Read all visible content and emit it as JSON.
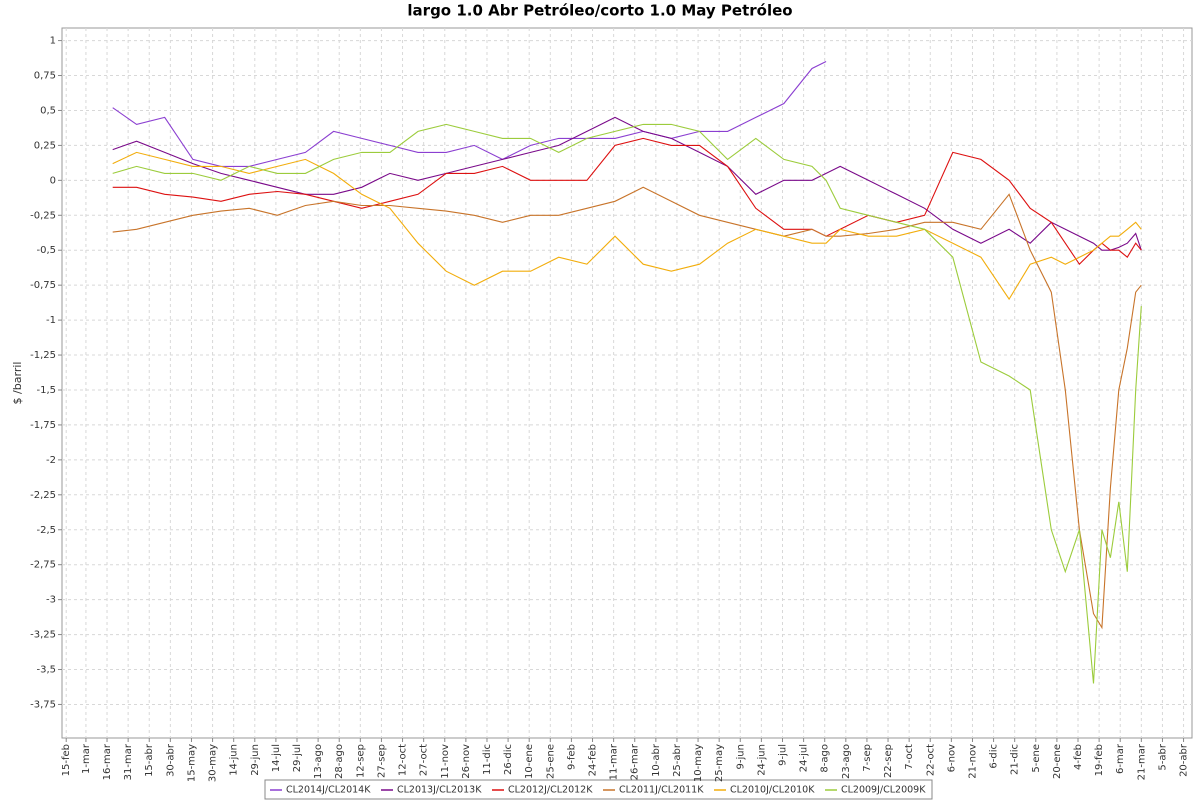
{
  "chart_data": {
    "type": "line",
    "title": "largo 1.0 Abr Petróleo/corto 1.0 May Petróleo",
    "y_label": "$ /barril",
    "grid": true,
    "legend": "bottom",
    "xlim": [
      -3,
      800
    ],
    "xticks": [
      {
        "value": 0,
        "label": "15-feb"
      },
      {
        "value": 14,
        "label": "1-mar"
      },
      {
        "value": 29,
        "label": "16-mar"
      },
      {
        "value": 44,
        "label": "31-mar"
      },
      {
        "value": 59,
        "label": "15-abr"
      },
      {
        "value": 74,
        "label": "30-abr"
      },
      {
        "value": 89,
        "label": "15-may"
      },
      {
        "value": 104,
        "label": "30-may"
      },
      {
        "value": 119,
        "label": "14-jun"
      },
      {
        "value": 134,
        "label": "29-jun"
      },
      {
        "value": 149,
        "label": "14-jul"
      },
      {
        "value": 164,
        "label": "29-jul"
      },
      {
        "value": 179,
        "label": "13-ago"
      },
      {
        "value": 194,
        "label": "28-ago"
      },
      {
        "value": 209,
        "label": "12-sep"
      },
      {
        "value": 224,
        "label": "27-sep"
      },
      {
        "value": 239,
        "label": "12-oct"
      },
      {
        "value": 254,
        "label": "27-oct"
      },
      {
        "value": 269,
        "label": "11-nov"
      },
      {
        "value": 284,
        "label": "26-nov"
      },
      {
        "value": 299,
        "label": "11-dic"
      },
      {
        "value": 314,
        "label": "26-dic"
      },
      {
        "value": 329,
        "label": "10-ene"
      },
      {
        "value": 344,
        "label": "25-ene"
      },
      {
        "value": 359,
        "label": "9-feb"
      },
      {
        "value": 374,
        "label": "24-feb"
      },
      {
        "value": 389,
        "label": "11-mar"
      },
      {
        "value": 404,
        "label": "26-mar"
      },
      {
        "value": 419,
        "label": "10-abr"
      },
      {
        "value": 434,
        "label": "25-abr"
      },
      {
        "value": 449,
        "label": "10-may"
      },
      {
        "value": 464,
        "label": "25-may"
      },
      {
        "value": 479,
        "label": "9-jun"
      },
      {
        "value": 494,
        "label": "24-jun"
      },
      {
        "value": 509,
        "label": "9-jul"
      },
      {
        "value": 524,
        "label": "24-jul"
      },
      {
        "value": 539,
        "label": "8-ago"
      },
      {
        "value": 554,
        "label": "23-ago"
      },
      {
        "value": 569,
        "label": "7-sep"
      },
      {
        "value": 584,
        "label": "22-sep"
      },
      {
        "value": 599,
        "label": "7-oct"
      },
      {
        "value": 614,
        "label": "22-oct"
      },
      {
        "value": 629,
        "label": "6-nov"
      },
      {
        "value": 644,
        "label": "21-nov"
      },
      {
        "value": 659,
        "label": "6-dic"
      },
      {
        "value": 674,
        "label": "21-dic"
      },
      {
        "value": 689,
        "label": "5-ene"
      },
      {
        "value": 704,
        "label": "20-ene"
      },
      {
        "value": 719,
        "label": "4-feb"
      },
      {
        "value": 734,
        "label": "19-feb"
      },
      {
        "value": 749,
        "label": "6-mar"
      },
      {
        "value": 764,
        "label": "21-mar"
      },
      {
        "value": 779,
        "label": "5-abr"
      },
      {
        "value": 794,
        "label": "20-abr"
      }
    ],
    "ylim": [
      -3.99,
      1.09
    ],
    "yticks": [
      1,
      {
        "value": 0.75,
        "label": "0,75"
      },
      {
        "value": 0.5,
        "label": "0,5"
      },
      {
        "value": 0.25,
        "label": "0,25"
      },
      0,
      {
        "value": -0.25,
        "label": "-0,25"
      },
      {
        "value": -0.5,
        "label": "-0,5"
      },
      {
        "value": -0.75,
        "label": "-0,75"
      },
      -1,
      {
        "value": -1.25,
        "label": "-1,25"
      },
      {
        "value": -1.5,
        "label": "-1,5"
      },
      {
        "value": -1.75,
        "label": "-1,75"
      },
      -2,
      {
        "value": -2.25,
        "label": "-2,25"
      },
      {
        "value": -2.5,
        "label": "-2,5"
      },
      {
        "value": -2.75,
        "label": "-2,75"
      },
      -3,
      {
        "value": -3.25,
        "label": "-3,25"
      },
      {
        "value": -3.5,
        "label": "-3,5"
      },
      {
        "value": -3.75,
        "label": "-3,75"
      }
    ],
    "x": [
      33,
      50,
      70,
      90,
      110,
      130,
      150,
      170,
      190,
      210,
      230,
      250,
      270,
      290,
      310,
      330,
      350,
      370,
      390,
      410,
      430,
      450,
      470,
      490,
      510,
      530,
      540,
      550,
      570,
      590,
      610,
      630,
      650,
      670,
      685,
      700,
      710,
      720,
      730,
      736,
      742,
      748,
      754,
      760,
      764
    ],
    "series": [
      {
        "name": "CL2014J/CL2014K",
        "color": "#8b3fd1",
        "values": [
          0.52,
          0.4,
          0.45,
          0.15,
          0.1,
          0.1,
          0.15,
          0.2,
          0.35,
          0.3,
          0.25,
          0.2,
          0.2,
          0.25,
          0.15,
          0.25,
          0.3,
          0.3,
          0.3,
          0.35,
          0.3,
          0.35,
          0.35,
          0.45,
          0.55,
          0.8,
          0.85,
          null,
          null,
          null,
          null,
          null,
          null,
          null,
          null,
          null,
          null,
          null,
          null,
          null,
          null,
          null,
          null,
          null,
          null
        ]
      },
      {
        "name": "CL2013J/CL2013K",
        "color": "#7a0a8a",
        "values": [
          0.22,
          0.28,
          0.2,
          0.12,
          0.05,
          0.0,
          -0.05,
          -0.1,
          -0.1,
          -0.05,
          0.05,
          0.0,
          0.05,
          0.1,
          0.15,
          0.2,
          0.25,
          0.35,
          0.45,
          0.35,
          0.3,
          0.2,
          0.1,
          -0.1,
          0.0,
          0.0,
          0.05,
          0.1,
          0.0,
          -0.1,
          -0.2,
          -0.35,
          -0.45,
          -0.35,
          -0.45,
          -0.3,
          -0.35,
          -0.4,
          -0.45,
          -0.5,
          -0.5,
          -0.48,
          -0.45,
          -0.38,
          -0.5
        ]
      },
      {
        "name": "CL2012J/CL2012K",
        "color": "#dd1111",
        "values": [
          -0.05,
          -0.05,
          -0.1,
          -0.12,
          -0.15,
          -0.1,
          -0.08,
          -0.1,
          -0.15,
          -0.2,
          -0.15,
          -0.1,
          0.05,
          0.05,
          0.1,
          0.0,
          0.0,
          0.0,
          0.25,
          0.3,
          0.25,
          0.25,
          0.1,
          -0.2,
          -0.35,
          -0.35,
          -0.4,
          -0.35,
          -0.25,
          -0.3,
          -0.25,
          0.2,
          0.15,
          0.0,
          -0.2,
          -0.3,
          -0.45,
          -0.6,
          -0.5,
          -0.45,
          -0.5,
          -0.5,
          -0.55,
          -0.45,
          -0.5
        ]
      },
      {
        "name": "CL2011J/CL2011K",
        "color": "#c8742a",
        "values": [
          -0.37,
          -0.35,
          -0.3,
          -0.25,
          -0.22,
          -0.2,
          -0.25,
          -0.18,
          -0.15,
          -0.18,
          -0.18,
          -0.2,
          -0.22,
          -0.25,
          -0.3,
          -0.25,
          -0.25,
          -0.2,
          -0.15,
          -0.05,
          -0.15,
          -0.25,
          -0.3,
          -0.35,
          -0.4,
          -0.35,
          -0.4,
          -0.4,
          -0.38,
          -0.35,
          -0.3,
          -0.3,
          -0.35,
          -0.1,
          -0.5,
          -0.8,
          -1.5,
          -2.5,
          -3.1,
          -3.2,
          -2.2,
          -1.5,
          -1.2,
          -0.8,
          -0.75
        ]
      },
      {
        "name": "CL2010J/CL2010K",
        "color": "#f2ad0c",
        "values": [
          0.12,
          0.2,
          0.15,
          0.1,
          0.1,
          0.05,
          0.1,
          0.15,
          0.05,
          -0.1,
          -0.2,
          -0.45,
          -0.65,
          -0.75,
          -0.65,
          -0.65,
          -0.55,
          -0.6,
          -0.4,
          -0.6,
          -0.65,
          -0.6,
          -0.45,
          -0.35,
          -0.4,
          -0.45,
          -0.45,
          -0.35,
          -0.4,
          -0.4,
          -0.35,
          -0.45,
          -0.55,
          -0.85,
          -0.6,
          -0.55,
          -0.6,
          -0.55,
          -0.5,
          -0.45,
          -0.4,
          -0.4,
          -0.35,
          -0.3,
          -0.35
        ]
      },
      {
        "name": "CL2009J/CL2009K",
        "color": "#9ccc3c",
        "values": [
          0.05,
          0.1,
          0.05,
          0.05,
          0.0,
          0.1,
          0.05,
          0.05,
          0.15,
          0.2,
          0.2,
          0.35,
          0.4,
          0.35,
          0.3,
          0.3,
          0.2,
          0.3,
          0.35,
          0.4,
          0.4,
          0.35,
          0.15,
          0.3,
          0.15,
          0.1,
          0.0,
          -0.2,
          -0.25,
          -0.3,
          -0.35,
          -0.55,
          -1.3,
          -1.4,
          -1.5,
          -2.5,
          -2.8,
          -2.5,
          -3.6,
          -2.5,
          -2.7,
          -2.3,
          -2.8,
          -1.5,
          -0.9
        ]
      }
    ]
  }
}
